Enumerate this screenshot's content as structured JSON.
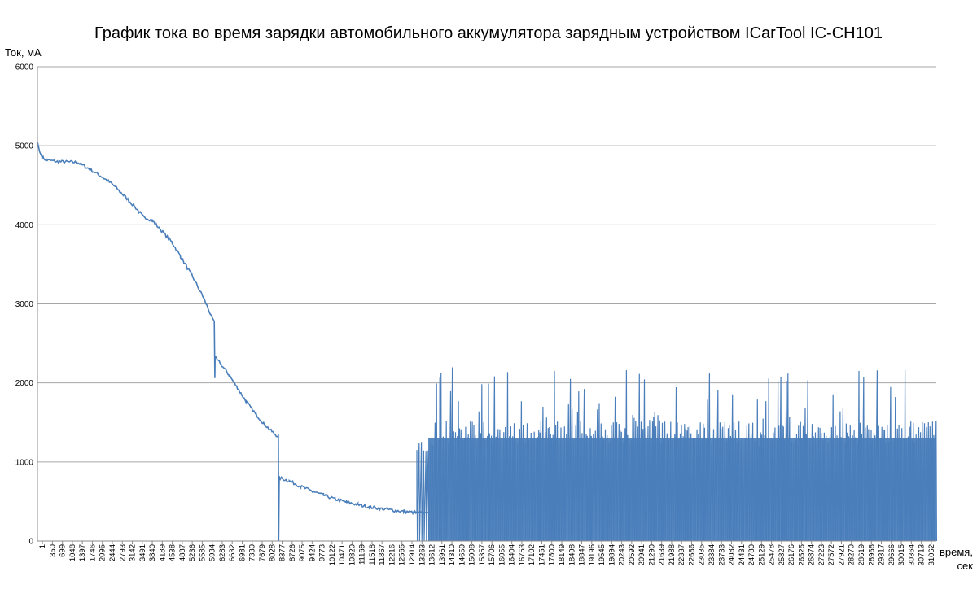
{
  "chart_data": {
    "type": "line",
    "title": "График тока во время зарядки автомобильного аккумулятора зарядным устройством ICarTool IC-CH101",
    "ylabel": "Ток, мА",
    "xlabel": "время,\nсек",
    "ylim": [
      0,
      6000
    ],
    "yticks": [
      0,
      1000,
      2000,
      3000,
      4000,
      5000,
      6000
    ],
    "grid": "horizontal",
    "legend": "none",
    "line_color": "#4a7ebb",
    "x_tick_labels": [
      "1",
      "350",
      "699",
      "1048",
      "1397",
      "1746",
      "2095",
      "2444",
      "2793",
      "3142",
      "3491",
      "3840",
      "4189",
      "4538",
      "4887",
      "5236",
      "5585",
      "5934",
      "6283",
      "6632",
      "6981",
      "7330",
      "7679",
      "8028",
      "8377",
      "8726",
      "9075",
      "9424",
      "9773",
      "10122",
      "10471",
      "10820",
      "11169",
      "11518",
      "11867",
      "12216",
      "12565",
      "12914",
      "13263",
      "13612",
      "13961",
      "14310",
      "14659",
      "15008",
      "15357",
      "15706",
      "16055",
      "16404",
      "16753",
      "17102",
      "17451",
      "17800",
      "18149",
      "18498",
      "18847",
      "19196",
      "19545",
      "19894",
      "20243",
      "20592",
      "20941",
      "21290",
      "21639",
      "21988",
      "22337",
      "22686",
      "23035",
      "23384",
      "23733",
      "24082",
      "24431",
      "24780",
      "25129",
      "25478",
      "25827",
      "26176",
      "26525",
      "26874",
      "27223",
      "27572",
      "27921",
      "28270",
      "28619",
      "28968",
      "29317",
      "29666",
      "30015",
      "30364",
      "30713",
      "31062"
    ],
    "x_range": [
      1,
      31412
    ],
    "series": [
      {
        "points": [
          [
            1,
            5050
          ],
          [
            80,
            4920
          ],
          [
            160,
            4860
          ],
          [
            300,
            4820
          ],
          [
            700,
            4800
          ],
          [
            1400,
            4790
          ],
          [
            1800,
            4710
          ],
          [
            2200,
            4620
          ],
          [
            2600,
            4520
          ],
          [
            3000,
            4380
          ],
          [
            3400,
            4230
          ],
          [
            3700,
            4100
          ],
          [
            4000,
            4060
          ],
          [
            4300,
            3940
          ],
          [
            4700,
            3780
          ],
          [
            5000,
            3600
          ],
          [
            5400,
            3360
          ],
          [
            5800,
            3080
          ],
          [
            6050,
            2870
          ],
          [
            6180,
            2780
          ],
          [
            6200,
            2060
          ],
          [
            6210,
            2320
          ],
          [
            6400,
            2240
          ],
          [
            6700,
            2100
          ],
          [
            7000,
            1930
          ],
          [
            7300,
            1760
          ],
          [
            7600,
            1620
          ],
          [
            7900,
            1490
          ],
          [
            8200,
            1380
          ],
          [
            8420,
            1320
          ],
          [
            8430,
            0
          ],
          [
            8450,
            800
          ],
          [
            8800,
            760
          ],
          [
            9200,
            690
          ],
          [
            9600,
            630
          ],
          [
            10000,
            580
          ],
          [
            10400,
            530
          ],
          [
            10800,
            490
          ],
          [
            11200,
            460
          ],
          [
            11600,
            430
          ],
          [
            12000,
            410
          ],
          [
            12400,
            390
          ],
          [
            12800,
            375
          ],
          [
            13200,
            360
          ],
          [
            13500,
            350
          ]
        ],
        "pulse_segment": {
          "x_start": 13261,
          "x_end": 31412,
          "pulse_peak_range": [
            1200,
            2200
          ],
          "base_max": 1450,
          "low_value": 0,
          "baseline_before": 360
        }
      }
    ]
  }
}
